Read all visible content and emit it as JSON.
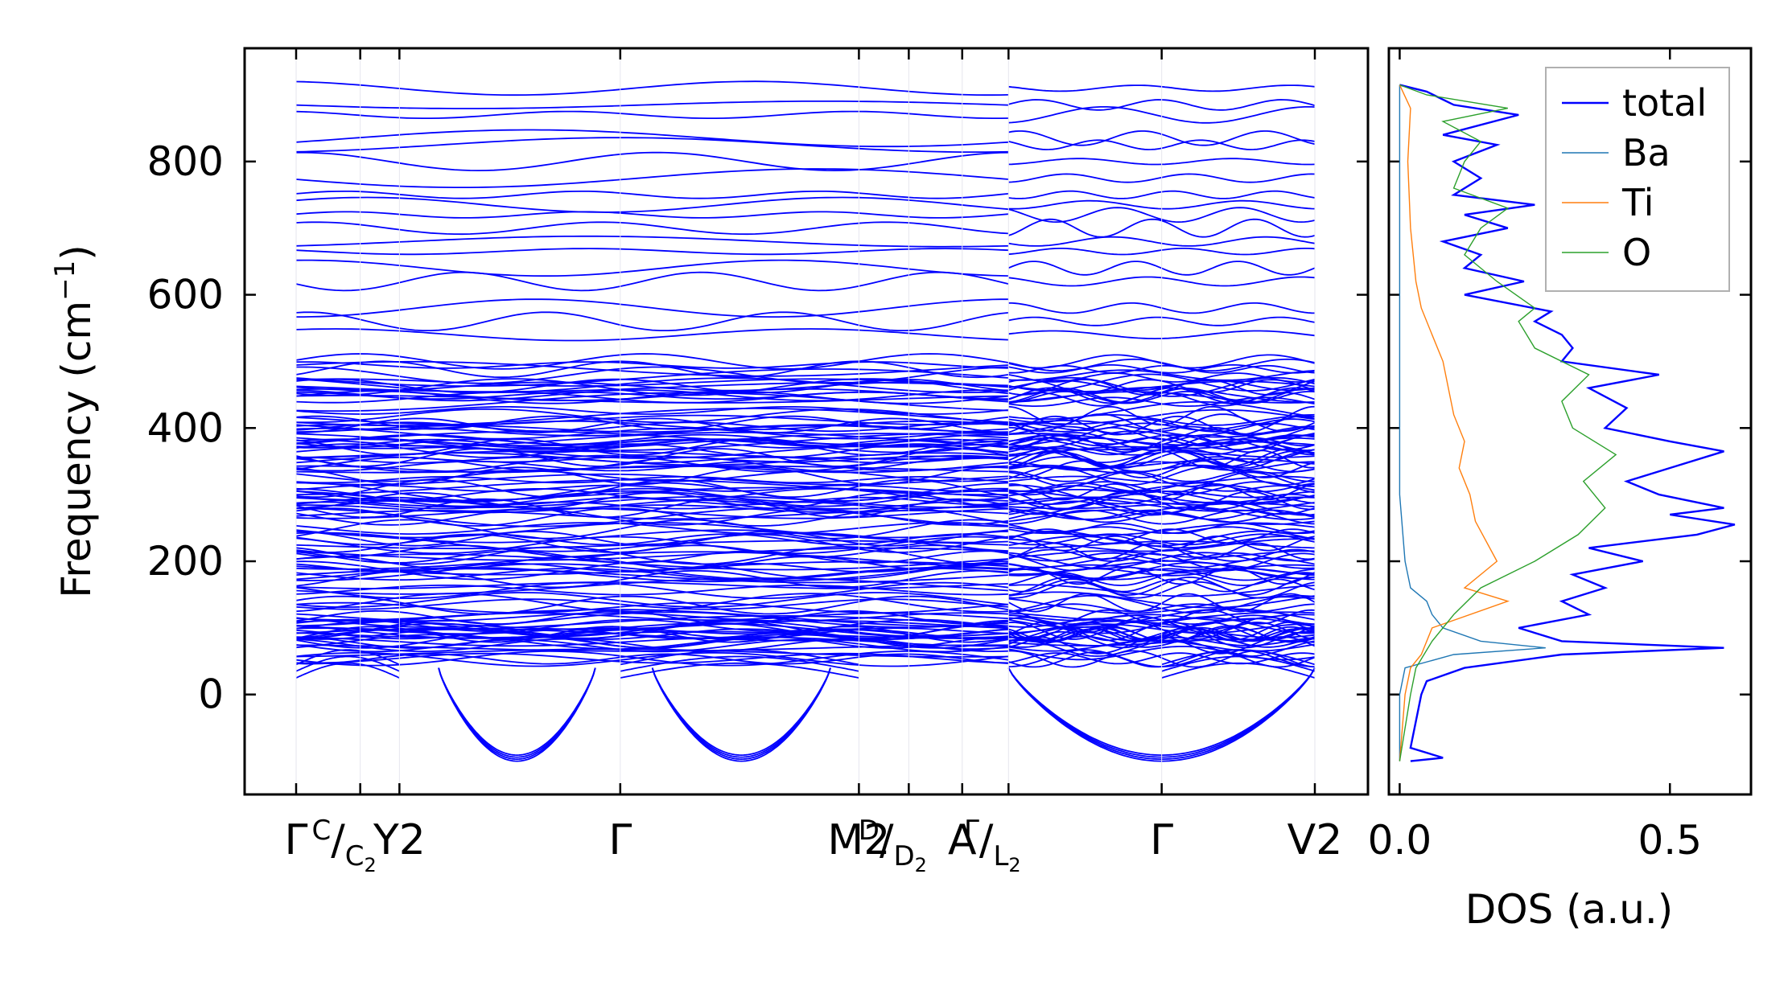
{
  "chart_data": [
    {
      "type": "line",
      "name": "phonon-band-structure",
      "ylabel": "Frequency (cm",
      "ylabel_sup": "−1",
      "ylabel_close": ")",
      "ylim": [
        -150,
        970
      ],
      "yticks": [
        0,
        200,
        400,
        600,
        800
      ],
      "line_color": "#0000ff",
      "segment_labels": [
        {
          "main": "Γ",
          "frac": ""
        },
        {
          "main": "",
          "frac": "C/C2"
        },
        {
          "main": "Y2",
          "frac": ""
        },
        {
          "main": "Γ",
          "frac": ""
        },
        {
          "main": "M2",
          "frac": ""
        },
        {
          "main": "",
          "frac": "D/D2"
        },
        {
          "main": "A",
          "frac": ""
        },
        {
          "main": "",
          "frac": "Γ/L2"
        },
        {
          "main": "Γ",
          "frac": ""
        },
        {
          "main": "V2",
          "frac": ""
        }
      ],
      "kpoint_positions": [
        0.0,
        0.09,
        0.145,
        0.455,
        0.79,
        0.86,
        0.935,
        1.0,
        1.215,
        1.43
      ],
      "path_breaks": [
        1.0
      ],
      "bands": {
        "min_frequency": -105,
        "max_frequency": 915,
        "dense_region": [
          50,
          500
        ],
        "notable_levels": [
          910,
          885,
          870,
          835,
          825,
          800,
          775,
          750,
          735,
          720,
          700,
          680,
          665,
          640,
          620,
          580,
          560,
          540,
          500
        ],
        "soft_modes": [
          {
            "segment": "Y2-Γ",
            "minimum": -100
          },
          {
            "segment": "Γ-M2",
            "minimum": -100
          },
          {
            "segment": "Γ-V2",
            "minimum": -100
          }
        ]
      }
    },
    {
      "type": "line",
      "name": "phonon-dos",
      "xlabel": "DOS (a.u.)",
      "xlim": [
        -0.02,
        0.65
      ],
      "xticks": [
        0.0,
        0.5
      ],
      "xtick_labels": [
        "0.0",
        "0.5"
      ],
      "ylim": [
        -150,
        970
      ],
      "legend": {
        "placement": "top-right"
      },
      "series": [
        {
          "name": "total",
          "color": "#0000ff",
          "points": [
            [
              -100,
              0.02
            ],
            [
              -95,
              0.08
            ],
            [
              -80,
              0.02
            ],
            [
              -40,
              0.03
            ],
            [
              0,
              0.04
            ],
            [
              20,
              0.05
            ],
            [
              40,
              0.12
            ],
            [
              60,
              0.3
            ],
            [
              70,
              0.6
            ],
            [
              80,
              0.3
            ],
            [
              100,
              0.22
            ],
            [
              120,
              0.35
            ],
            [
              140,
              0.3
            ],
            [
              160,
              0.38
            ],
            [
              180,
              0.32
            ],
            [
              200,
              0.45
            ],
            [
              220,
              0.35
            ],
            [
              240,
              0.55
            ],
            [
              255,
              0.62
            ],
            [
              270,
              0.5
            ],
            [
              280,
              0.6
            ],
            [
              300,
              0.48
            ],
            [
              320,
              0.42
            ],
            [
              340,
              0.5
            ],
            [
              365,
              0.6
            ],
            [
              380,
              0.5
            ],
            [
              400,
              0.38
            ],
            [
              430,
              0.42
            ],
            [
              460,
              0.35
            ],
            [
              480,
              0.48
            ],
            [
              500,
              0.3
            ],
            [
              520,
              0.32
            ],
            [
              540,
              0.3
            ],
            [
              560,
              0.25
            ],
            [
              575,
              0.28
            ],
            [
              600,
              0.12
            ],
            [
              620,
              0.23
            ],
            [
              640,
              0.12
            ],
            [
              660,
              0.15
            ],
            [
              680,
              0.08
            ],
            [
              700,
              0.2
            ],
            [
              720,
              0.12
            ],
            [
              735,
              0.25
            ],
            [
              750,
              0.1
            ],
            [
              775,
              0.15
            ],
            [
              800,
              0.1
            ],
            [
              825,
              0.18
            ],
            [
              840,
              0.08
            ],
            [
              870,
              0.22
            ],
            [
              885,
              0.1
            ],
            [
              905,
              0.05
            ],
            [
              915,
              0.0
            ]
          ]
        },
        {
          "name": "Ba",
          "color": "#1f77b4",
          "points": [
            [
              -100,
              0.0
            ],
            [
              0,
              0.0
            ],
            [
              40,
              0.01
            ],
            [
              60,
              0.1
            ],
            [
              70,
              0.27
            ],
            [
              80,
              0.15
            ],
            [
              100,
              0.08
            ],
            [
              120,
              0.06
            ],
            [
              140,
              0.05
            ],
            [
              160,
              0.02
            ],
            [
              200,
              0.01
            ],
            [
              300,
              0.0
            ],
            [
              915,
              0.0
            ]
          ]
        },
        {
          "name": "Ti",
          "color": "#ff7f0e",
          "points": [
            [
              -100,
              0.0
            ],
            [
              0,
              0.01
            ],
            [
              40,
              0.02
            ],
            [
              60,
              0.04
            ],
            [
              100,
              0.06
            ],
            [
              140,
              0.2
            ],
            [
              160,
              0.12
            ],
            [
              200,
              0.18
            ],
            [
              260,
              0.14
            ],
            [
              300,
              0.13
            ],
            [
              340,
              0.11
            ],
            [
              380,
              0.12
            ],
            [
              420,
              0.1
            ],
            [
              460,
              0.09
            ],
            [
              500,
              0.08
            ],
            [
              540,
              0.06
            ],
            [
              580,
              0.04
            ],
            [
              620,
              0.03
            ],
            [
              700,
              0.02
            ],
            [
              800,
              0.015
            ],
            [
              880,
              0.02
            ],
            [
              915,
              0.0
            ]
          ]
        },
        {
          "name": "O",
          "color": "#2ca02c",
          "points": [
            [
              -100,
              0.0
            ],
            [
              0,
              0.02
            ],
            [
              40,
              0.03
            ],
            [
              80,
              0.06
            ],
            [
              120,
              0.1
            ],
            [
              160,
              0.15
            ],
            [
              200,
              0.25
            ],
            [
              240,
              0.33
            ],
            [
              280,
              0.38
            ],
            [
              320,
              0.34
            ],
            [
              360,
              0.4
            ],
            [
              400,
              0.32
            ],
            [
              440,
              0.3
            ],
            [
              480,
              0.35
            ],
            [
              520,
              0.25
            ],
            [
              560,
              0.22
            ],
            [
              580,
              0.25
            ],
            [
              620,
              0.18
            ],
            [
              660,
              0.12
            ],
            [
              700,
              0.15
            ],
            [
              730,
              0.2
            ],
            [
              760,
              0.1
            ],
            [
              800,
              0.12
            ],
            [
              830,
              0.15
            ],
            [
              860,
              0.08
            ],
            [
              880,
              0.2
            ],
            [
              900,
              0.05
            ],
            [
              915,
              0.0
            ]
          ]
        }
      ]
    }
  ]
}
